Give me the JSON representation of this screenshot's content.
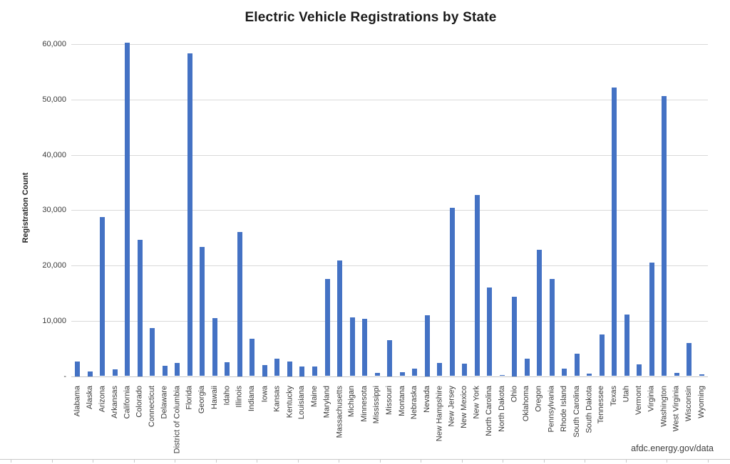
{
  "title": "Electric Vehicle Registrations by State",
  "source_note": "afdc.energy.gov/data",
  "chart_data": {
    "type": "bar",
    "title": "Electric Vehicle Registrations by State",
    "xlabel": "",
    "ylabel": "Registration Count",
    "ylim": [
      0,
      60000
    ],
    "ytick_interval": 10000,
    "ytick_labels": [
      "-",
      "10,000",
      "20,000",
      "30,000",
      "40,000",
      "50,000",
      "60,000"
    ],
    "grid": true,
    "legend": false,
    "bar_color": "#4472C4",
    "gridline_color": "#D9D9D9",
    "source": "afdc.energy.gov/data",
    "categories": [
      "Alabama",
      "Alaska",
      "Arizona",
      "Arkansas",
      "California",
      "Colorado",
      "Connecticut",
      "Delaware",
      "District of Columbia",
      "Florida",
      "Georgia",
      "Hawaii",
      "Idaho",
      "Illinois",
      "Indiana",
      "Iowa",
      "Kansas",
      "Kentucky",
      "Louisiana",
      "Maine",
      "Maryland",
      "Massachusetts",
      "Michigan",
      "Minnesota",
      "Mississippi",
      "Missouri",
      "Montana",
      "Nebraska",
      "Nevada",
      "New Hampshire",
      "New Jersey",
      "New Mexico",
      "New York",
      "North Carolina",
      "North Dakota",
      "Ohio",
      "Oklahoma",
      "Oregon",
      "Pennsylvania",
      "Rhode Island",
      "South Carolina",
      "South Dakota",
      "Tennessee",
      "Texas",
      "Utah",
      "Vermont",
      "Virginia",
      "Washington",
      "West Virginia",
      "Wisconsin",
      "Wyoming"
    ],
    "values": [
      2700,
      900,
      28700,
      1200,
      60300,
      24700,
      8700,
      1900,
      2400,
      58300,
      23400,
      10500,
      2500,
      26000,
      6700,
      2000,
      3100,
      2700,
      1800,
      1700,
      17600,
      20900,
      10600,
      10400,
      600,
      6500,
      700,
      1400,
      11000,
      2400,
      30400,
      2300,
      32700,
      16000,
      200,
      14400,
      3100,
      22800,
      17500,
      1300,
      4100,
      400,
      7500,
      52200,
      11100,
      2100,
      20500,
      50600,
      600,
      6000,
      300
    ]
  }
}
